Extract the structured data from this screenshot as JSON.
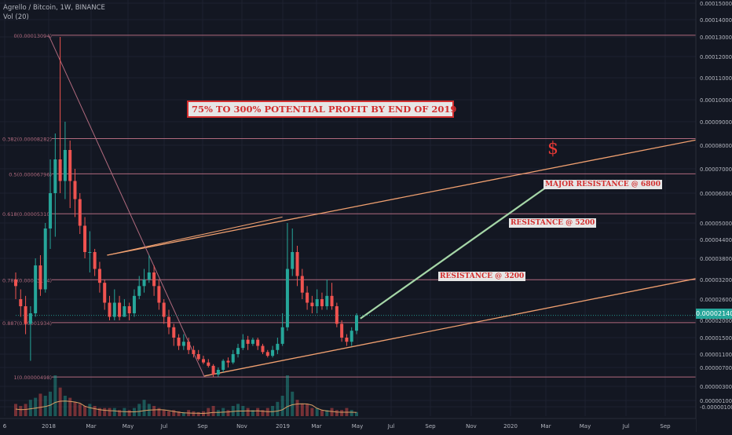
{
  "header": {
    "symbol_line": "Agrello / Bitcoin, 1W, BINANCE",
    "volume_line": "Vol (20)"
  },
  "annotations": {
    "banner": "75% TO 300% POTENTIAL PROFIT BY END OF 2019",
    "dollar": "$",
    "labels": [
      "MAJOR RESISTANCE @ 6800",
      "RESISTANCE @ 5200",
      "RESISTANCE @ 3200"
    ],
    "current_price": "0.00002140"
  },
  "colors": {
    "background": "#131722",
    "up": "#26a69a",
    "down": "#ef5350",
    "fib_lines": "#b06a7e",
    "channel": "#f0a070",
    "arrow": "#a5d6a7",
    "label_text": "#d32f2f"
  },
  "chart_data": {
    "type": "candlestick",
    "y_axis": {
      "ticks": [
        "0.00015000",
        "0.00014000",
        "0.00013000",
        "0.00012000",
        "0.00011000",
        "0.00010000",
        "0.00009000",
        "0.00008000",
        "0.00007000",
        "0.00006000",
        "0.00005000",
        "0.00004400",
        "0.00003800",
        "0.00003200",
        "0.00002600",
        "0.00002000",
        "0.00001500",
        "0.00001100",
        "0.00000700",
        "0.00000300",
        "0.00000100",
        "-0.00000100"
      ]
    },
    "x_axis": {
      "ticks": [
        "6",
        "2018",
        "Mar",
        "May",
        "Jul",
        "Sep",
        "Nov",
        "2019",
        "Mar",
        "May",
        "Jul",
        "Sep",
        "Nov",
        "2020",
        "Mar",
        "May",
        "Jul",
        "Sep"
      ]
    },
    "fib_levels": [
      {
        "label": "0(0.00013094)",
        "value": 0.00013094
      },
      {
        "label": "0.382(0.00008282)",
        "value": 8.282e-05
      },
      {
        "label": "0.5(0.00006796)",
        "value": 6.796e-05
      },
      {
        "label": "0.618(0.00005310)",
        "value": 5.31e-05
      },
      {
        "label": "0.786(0.00003194)",
        "value": 3.194e-05
      },
      {
        "label": "0.887(0.00001934)",
        "value": 1.934e-05
      },
      {
        "label": "1(0.00000498)",
        "value": 4.98e-06
      }
    ],
    "candles": [
      [
        3.2e-05,
        3e-05,
        2.6e-05,
        3.4e-05
      ],
      [
        2.6e-05,
        2.4e-05,
        2.1e-05,
        2.9e-05
      ],
      [
        2.4e-05,
        1.9e-05,
        1.6e-05,
        2.7e-05
      ],
      [
        1.9e-05,
        2.2e-05,
        9e-06,
        2.4e-05
      ],
      [
        2.2e-05,
        3.6e-05,
        2.1e-05,
        3.8e-05
      ],
      [
        3.6e-05,
        2.9e-05,
        2.7e-05,
        3.9e-05
      ],
      [
        2.9e-05,
        4.8e-05,
        2.8e-05,
        5e-05
      ],
      [
        4.8e-05,
        6e-05,
        4.1e-05,
        7.4e-05
      ],
      [
        6e-05,
        7.4e-05,
        4.5e-05,
        8.5e-05
      ],
      [
        7.4e-05,
        6.5e-05,
        6e-05,
        0.00013
      ],
      [
        6.5e-05,
        7.8e-05,
        5.8e-05,
        9e-05
      ],
      [
        7.8e-05,
        6.5e-05,
        5.5e-05,
        8.2e-05
      ],
      [
        6.5e-05,
        5.8e-05,
        5.2e-05,
        7e-05
      ],
      [
        5.8e-05,
        4.9e-05,
        4.6e-05,
        6e-05
      ],
      [
        4.9e-05,
        4e-05,
        3.8e-05,
        5.2e-05
      ],
      [
        4e-05,
        4e-05,
        3.4e-05,
        4.7e-05
      ],
      [
        4e-05,
        3.5e-05,
        3.3e-05,
        4.1e-05
      ],
      [
        3.5e-05,
        3.1e-05,
        2.8e-05,
        3.7e-05
      ],
      [
        3.1e-05,
        2.5e-05,
        2.3e-05,
        3.2e-05
      ],
      [
        2.5e-05,
        2.1e-05,
        2e-05,
        2.7e-05
      ],
      [
        2.1e-05,
        2.5e-05,
        2e-05,
        2.9e-05
      ],
      [
        2.5e-05,
        2.1e-05,
        2e-05,
        2.7e-05
      ],
      [
        2.1e-05,
        2.4e-05,
        2.1e-05,
        2.6e-05
      ],
      [
        2.4e-05,
        2.2e-05,
        2e-05,
        2.5e-05
      ],
      [
        2.2e-05,
        2.7e-05,
        2.1e-05,
        2.9e-05
      ],
      [
        2.7e-05,
        3e-05,
        2.6e-05,
        3.3e-05
      ],
      [
        3e-05,
        3.2e-05,
        2.8e-05,
        3.5e-05
      ],
      [
        3.2e-05,
        3.4e-05,
        3.1e-05,
        3.9e-05
      ],
      [
        3.4e-05,
        3e-05,
        2.7e-05,
        3.6e-05
      ],
      [
        3e-05,
        2.5e-05,
        2.3e-05,
        3.2e-05
      ],
      [
        2.5e-05,
        2.1e-05,
        1.9e-05,
        2.6e-05
      ],
      [
        2.1e-05,
        1.8e-05,
        1.6e-05,
        2.3e-05
      ],
      [
        1.8e-05,
        1.5e-05,
        1.3e-05,
        1.9e-05
      ],
      [
        1.5e-05,
        1.3e-05,
        1.2e-05,
        1.6e-05
      ],
      [
        1.3e-05,
        1.4e-05,
        1.2e-05,
        1.6e-05
      ],
      [
        1.4e-05,
        1.2e-05,
        1.1e-05,
        1.5e-05
      ],
      [
        1.2e-05,
        1.1e-05,
        1e-05,
        1.3e-05
      ],
      [
        1.1e-05,
        9.5e-06,
        9e-06,
        1.2e-05
      ],
      [
        9.5e-06,
        8.5e-06,
        8e-06,
        1.05e-05
      ],
      [
        8.5e-06,
        7.5e-06,
        7e-06,
        9.5e-06
      ],
      [
        7.5e-06,
        5.5e-06,
        5e-06,
        8e-06
      ],
      [
        5.5e-06,
        6.5e-06,
        5e-06,
        7e-06
      ],
      [
        6.5e-06,
        9e-06,
        6e-06,
        9.5e-06
      ],
      [
        9e-06,
        8.5e-06,
        7e-06,
        1e-05
      ],
      [
        8.5e-06,
        1.1e-05,
        8e-06,
        1.2e-05
      ],
      [
        1.1e-05,
        1.25e-05,
        1e-05,
        1.35e-05
      ],
      [
        1.25e-05,
        1.45e-05,
        1.2e-05,
        1.6e-05
      ],
      [
        1.45e-05,
        1.35e-05,
        1.2e-05,
        1.55e-05
      ],
      [
        1.35e-05,
        1.45e-05,
        1.3e-05,
        1.5e-05
      ],
      [
        1.45e-05,
        1.3e-05,
        1.2e-05,
        1.5e-05
      ],
      [
        1.3e-05,
        1.15e-05,
        1.1e-05,
        1.35e-05
      ],
      [
        1.15e-05,
        1.05e-05,
        1e-05,
        1.2e-05
      ],
      [
        1.05e-05,
        1.2e-05,
        1e-05,
        1.3e-05
      ],
      [
        1.2e-05,
        1.35e-05,
        1.1e-05,
        1.5e-05
      ],
      [
        1.35e-05,
        1.8e-05,
        1.3e-05,
        2.2e-05
      ],
      [
        1.8e-05,
        3.5e-05,
        1.7e-05,
        5e-05
      ],
      [
        3.5e-05,
        4e-05,
        3.3e-05,
        4.8e-05
      ],
      [
        4e-05,
        3.3e-05,
        3e-05,
        4.2e-05
      ],
      [
        3.3e-05,
        2.8e-05,
        2.6e-05,
        3.5e-05
      ],
      [
        2.8e-05,
        2.5e-05,
        2.3e-05,
        3e-05
      ],
      [
        2.5e-05,
        2.4e-05,
        2.2e-05,
        2.7e-05
      ],
      [
        2.4e-05,
        2.6e-05,
        2.2e-05,
        2.9e-05
      ],
      [
        2.6e-05,
        2.4e-05,
        2.3e-05,
        2.8e-05
      ],
      [
        2.4e-05,
        2.7e-05,
        2.3e-05,
        3.2e-05
      ],
      [
        2.7e-05,
        2.4e-05,
        2.3e-05,
        3.1e-05
      ],
      [
        2.4e-05,
        1.9e-05,
        1.8e-05,
        2.5e-05
      ],
      [
        1.9e-05,
        1.5e-05,
        1.4e-05,
        2e-05
      ],
      [
        1.5e-05,
        1.4e-05,
        1.3e-05,
        1.6e-05
      ],
      [
        1.4e-05,
        1.7e-05,
        1.3e-05,
        1.8e-05
      ],
      [
        1.7e-05,
        2.14e-05,
        1.6e-05,
        2.2e-05
      ]
    ],
    "volume": [
      0.3,
      0.25,
      0.3,
      0.4,
      0.45,
      0.55,
      0.5,
      0.6,
      1.0,
      0.7,
      0.5,
      0.45,
      0.35,
      0.3,
      0.25,
      0.3,
      0.25,
      0.2,
      0.2,
      0.2,
      0.2,
      0.15,
      0.2,
      0.15,
      0.2,
      0.3,
      0.4,
      0.3,
      0.25,
      0.2,
      0.15,
      0.12,
      0.15,
      0.12,
      0.1,
      0.15,
      0.12,
      0.1,
      0.12,
      0.2,
      0.25,
      0.15,
      0.2,
      0.15,
      0.25,
      0.3,
      0.25,
      0.2,
      0.15,
      0.2,
      0.15,
      0.2,
      0.25,
      0.35,
      0.5,
      1.0,
      0.6,
      0.4,
      0.3,
      0.3,
      0.2,
      0.2,
      0.15,
      0.15,
      0.2,
      0.15,
      0.15,
      0.2,
      0.15,
      0.1
    ],
    "channel_upper": {
      "start": {
        "date": "Apr 2018",
        "value": 3.9e-05
      },
      "end": {
        "date": "Nov 2020",
        "value": 8.35e-05
      }
    },
    "channel_lower": {
      "start": {
        "date": "Sep 2018",
        "value": 5.2e-06
      },
      "end": {
        "date": "Nov 2020",
        "value": 3.31e-05
      }
    },
    "upper_channel_segment_2018": {
      "start": {
        "date": "Apr 2018",
        "value": 3.9e-05
      },
      "end": {
        "date": "Jan 2019",
        "value": 5.2e-05
      }
    },
    "arrow": {
      "from": {
        "date": "May 2019",
        "value": 2.05e-05
      },
      "to": {
        "date": "Mar 2020",
        "value": 6.5e-05
      }
    },
    "diagonal": {
      "from": {
        "date": "Jan 2018",
        "value": 0.00013094
      },
      "to": {
        "date": "Sep 2018",
        "value": 4.98e-06
      }
    }
  }
}
